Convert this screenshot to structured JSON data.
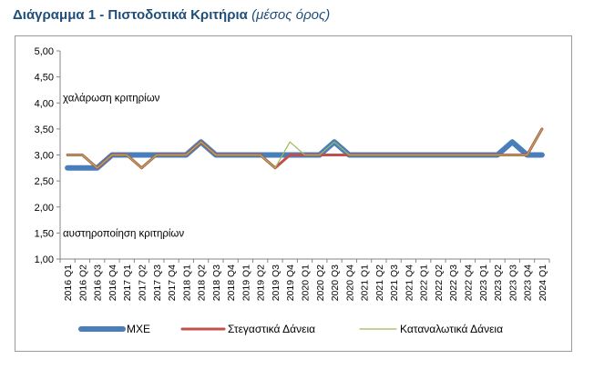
{
  "title": {
    "main": "Διάγραμμα 1 - Πιστοδοτικά Κριτήρια",
    "sub": "(μέσος όρος)"
  },
  "chart_data": {
    "type": "line",
    "ylim": [
      1.0,
      5.0
    ],
    "yticks": [
      "1,00",
      "1,50",
      "2,00",
      "2,50",
      "3,00",
      "3,50",
      "4,00",
      "4,50",
      "5,00"
    ],
    "grid": false,
    "legend_position": "bottom",
    "annotations": [
      {
        "text": "χαλάρωση κριτηρίων",
        "y": 4.1
      },
      {
        "text": "αυστηροποίηση κριτηρίων",
        "y": 1.5
      }
    ],
    "categories": [
      "2016 Q1",
      "2016 Q2",
      "2016 Q3",
      "2016 Q4",
      "2017 Q1",
      "2017 Q2",
      "2017 Q3",
      "2017 Q4",
      "2018 Q1",
      "2018 Q2",
      "2018 Q3",
      "2018 Q4",
      "2019 Q1",
      "2019 Q2",
      "2019 Q3",
      "2019 Q4",
      "2020 Q1",
      "2020 Q2",
      "2020 Q3",
      "2020 Q4",
      "2021 Q1",
      "2021 Q2",
      "2021 Q3",
      "2021 Q4",
      "2022 Q1",
      "2022 Q2",
      "2022 Q3",
      "2022 Q4",
      "2023 Q1",
      "2023 Q2",
      "2023 Q3",
      "2023 Q4",
      "2024 Q1"
    ],
    "series": [
      {
        "name": "ΜΧΕ",
        "color": "#4a7ebb",
        "width": 6,
        "values": [
          2.75,
          2.75,
          2.75,
          3.0,
          3.0,
          3.0,
          3.0,
          3.0,
          3.0,
          3.25,
          3.0,
          3.0,
          3.0,
          3.0,
          3.0,
          3.0,
          3.0,
          3.0,
          3.25,
          3.0,
          3.0,
          3.0,
          3.0,
          3.0,
          3.0,
          3.0,
          3.0,
          3.0,
          3.0,
          3.0,
          3.25,
          3.0,
          3.0
        ]
      },
      {
        "name": "Στεγαστικά Δάνεια",
        "color": "#c0504d",
        "width": 3,
        "values": [
          3.0,
          3.0,
          2.75,
          3.0,
          3.0,
          2.75,
          3.0,
          3.0,
          3.0,
          3.25,
          3.0,
          3.0,
          3.0,
          3.0,
          2.75,
          3.0,
          3.0,
          3.0,
          3.0,
          3.0,
          3.0,
          3.0,
          3.0,
          3.0,
          3.0,
          3.0,
          3.0,
          3.0,
          3.0,
          3.0,
          3.0,
          3.0,
          3.5
        ]
      },
      {
        "name": "Καταναλωτικά Δάνεια",
        "color": "#9bbb59",
        "width": 1.2,
        "values": [
          3.0,
          3.0,
          2.75,
          3.0,
          3.0,
          2.75,
          3.0,
          3.0,
          3.0,
          3.25,
          3.0,
          3.0,
          3.0,
          3.0,
          2.75,
          3.25,
          3.0,
          3.0,
          3.25,
          3.0,
          3.0,
          3.0,
          3.0,
          3.0,
          3.0,
          3.0,
          3.0,
          3.0,
          3.0,
          3.0,
          3.0,
          3.0,
          3.5
        ]
      }
    ]
  }
}
